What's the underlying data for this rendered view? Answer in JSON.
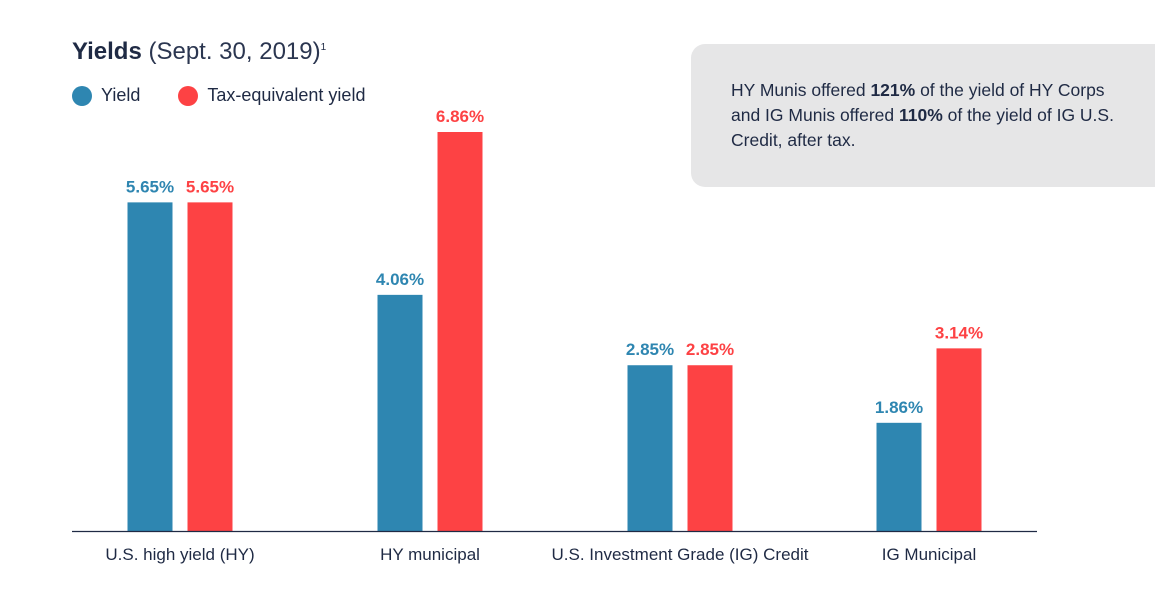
{
  "title": {
    "bold": "Yields",
    "sub": "(Sept. 30, 2019)",
    "footnote": "1"
  },
  "legend": [
    {
      "label": "Yield",
      "color": "#2e86b1"
    },
    {
      "label": "Tax-equivalent yield",
      "color": "#fd4244"
    }
  ],
  "callout": {
    "t1": "HY Munis offered ",
    "b1": "121%",
    "t2": " of the yield of HY Corps and IG Munis offered ",
    "b2": "110%",
    "t3": " of the yield of IG U.S. Credit, after tax."
  },
  "chart_data": {
    "type": "bar",
    "categories": [
      "U.S. high yield (HY)",
      "HY municipal",
      "U.S. Investment Grade (IG) Credit",
      "IG Municipal"
    ],
    "series": [
      {
        "name": "Yield",
        "values": [
          5.65,
          4.06,
          2.85,
          1.86
        ],
        "labels": [
          "5.65%",
          "4.06%",
          "2.85%",
          "1.86%"
        ],
        "color": "#2e86b1"
      },
      {
        "name": "Tax-equivalent yield",
        "values": [
          5.65,
          6.86,
          2.85,
          3.14
        ],
        "labels": [
          "5.65%",
          "6.86%",
          "2.85%",
          "3.14%"
        ],
        "color": "#fd4244"
      }
    ],
    "title": "Yields (Sept. 30, 2019)",
    "ylim": [
      0,
      6.86
    ],
    "grid": false,
    "legend": "top-left"
  }
}
